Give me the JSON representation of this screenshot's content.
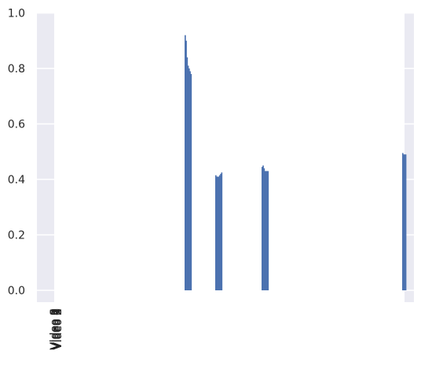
{
  "chart_data": {
    "type": "bar",
    "title": "",
    "xlabel": "",
    "ylabel": "",
    "ylim": [
      0,
      1.0
    ],
    "yticks": [
      "0.0",
      "0.2",
      "0.4",
      "0.6",
      "0.8",
      "1.0"
    ],
    "grid": true,
    "legend": "none",
    "colors": {
      "bar": "#4c72b0",
      "plot_bg": "#eaeaf2",
      "grid": "#ffffff",
      "text": "#262626"
    },
    "bar_groups": [
      {
        "values": [
          0.92,
          0.9,
          0.84,
          0.81,
          0.8,
          0.79,
          0.78
        ]
      },
      {
        "values": [
          0.415,
          0.41,
          0.41,
          0.41,
          0.415,
          0.42,
          0.425
        ]
      },
      {
        "values": [
          0.445,
          0.45,
          0.44,
          0.43,
          0.43,
          0.43,
          0.43
        ]
      },
      {
        "values": [
          0.495,
          0.49,
          0.49,
          0.49
        ]
      }
    ],
    "x_tick_labels": [
      "Video 0",
      "Video 1",
      "Video 2",
      "Video 3",
      "Video 4",
      "Video 5",
      "Video 6",
      "Video 7",
      "Video 8",
      "Video 9"
    ]
  }
}
